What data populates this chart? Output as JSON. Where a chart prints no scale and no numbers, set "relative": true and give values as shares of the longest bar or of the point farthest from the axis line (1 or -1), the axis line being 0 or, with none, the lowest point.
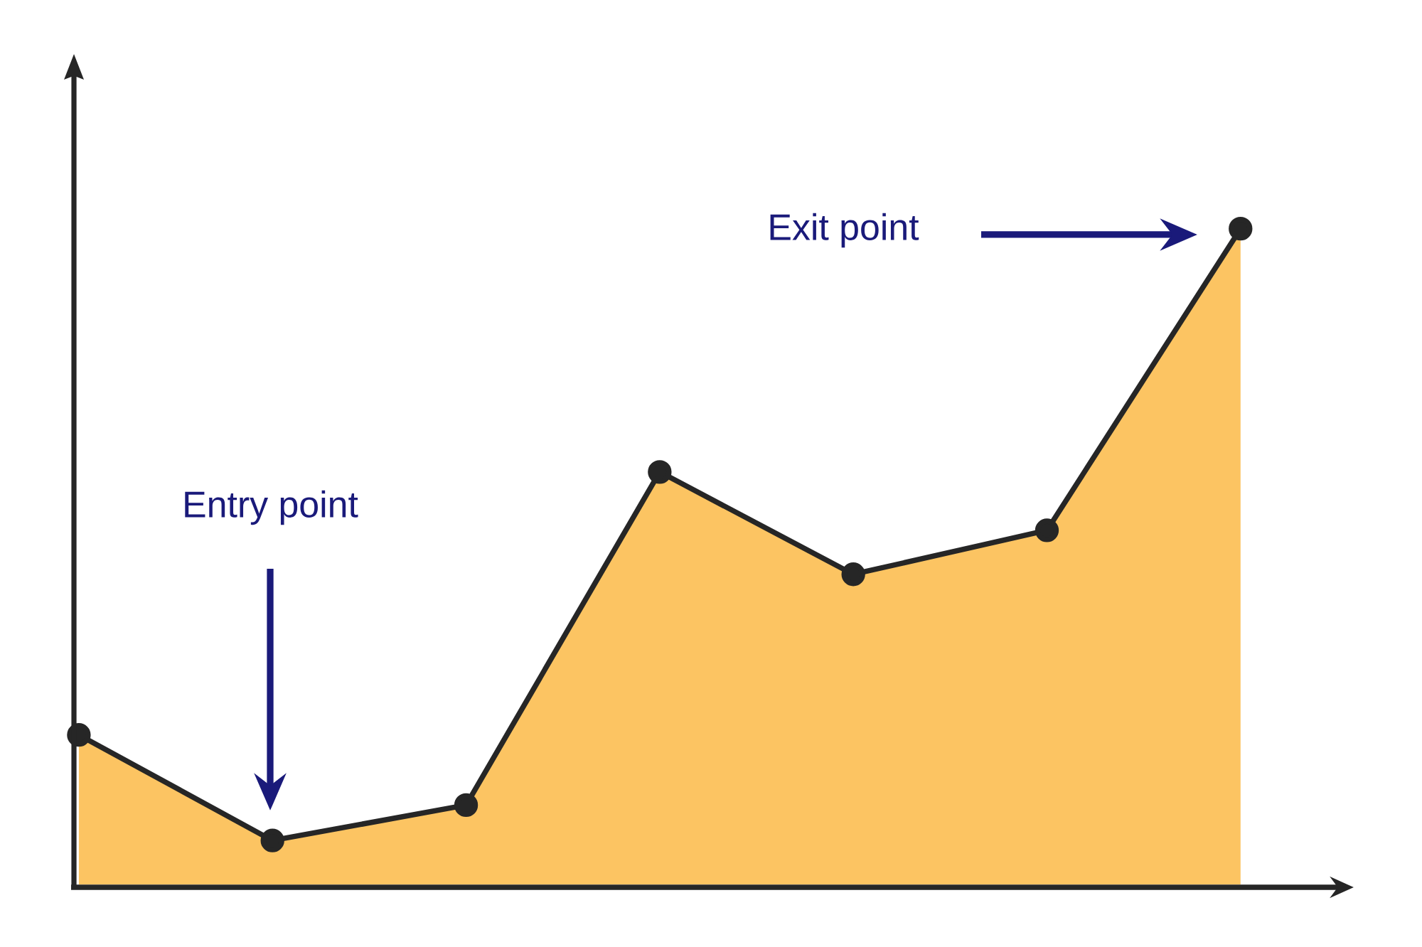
{
  "chart_data": {
    "type": "area",
    "relative": true,
    "categories": [
      null,
      null,
      null,
      null,
      null,
      null,
      null
    ],
    "series": [
      {
        "color": "#fcc462",
        "values": [
          0.228,
          0.067,
          0.121,
          0.629,
          0.473,
          0.54,
          1.0
        ]
      }
    ],
    "marker": "circle",
    "line_style": "solid",
    "annotations": [
      "Entry point",
      "Exit point"
    ]
  }
}
